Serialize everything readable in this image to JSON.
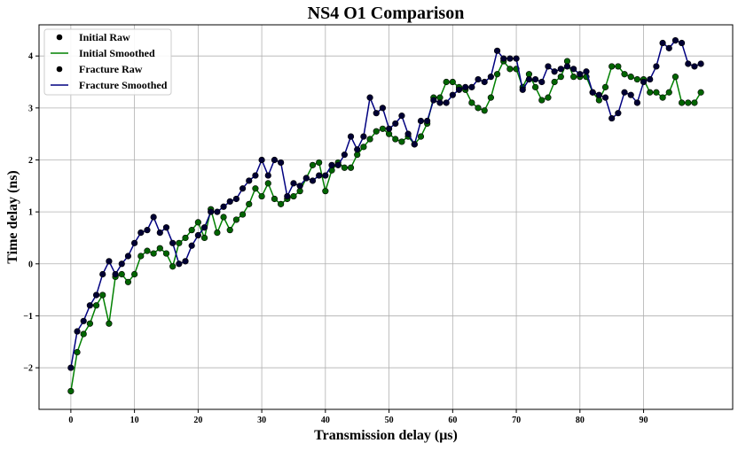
{
  "chart_data": {
    "type": "line",
    "title": "NS4 O1 Comparison",
    "xlabel": "Transmission delay (μs)",
    "ylabel": "Time delay (ns)",
    "xlim": [
      -5,
      104
    ],
    "ylim": [
      -2.8,
      4.6
    ],
    "xticks": [
      0,
      10,
      20,
      30,
      40,
      50,
      60,
      70,
      80,
      90
    ],
    "yticks": [
      -2,
      -1,
      0,
      1,
      2,
      3,
      4
    ],
    "xtick_labels": [
      "0",
      "10",
      "20",
      "30",
      "40",
      "50",
      "60",
      "70",
      "80",
      "90"
    ],
    "ytick_labels": [
      "−2",
      "−1",
      "0",
      "1",
      "2",
      "3",
      "4"
    ],
    "grid": true,
    "legend_position": "top-left",
    "legend": [
      {
        "label": "Initial Raw",
        "kind": "marker",
        "color": "#000000"
      },
      {
        "label": "Initial Smoothed",
        "kind": "line",
        "color": "#008000"
      },
      {
        "label": "Fracture Raw",
        "kind": "marker",
        "color": "#000000"
      },
      {
        "label": "Fracture Smoothed",
        "kind": "line",
        "color": "#000080"
      }
    ],
    "series": [
      {
        "name": "Initial Smoothed",
        "color": "#008000",
        "marker_fill": "#006400",
        "x": [
          0,
          1,
          2,
          3,
          4,
          5,
          6,
          7,
          8,
          9,
          10,
          11,
          12,
          13,
          14,
          15,
          16,
          17,
          18,
          19,
          20,
          21,
          22,
          23,
          24,
          25,
          26,
          27,
          28,
          29,
          30,
          31,
          32,
          33,
          34,
          35,
          36,
          37,
          38,
          39,
          40,
          41,
          42,
          43,
          44,
          45,
          46,
          47,
          48,
          49,
          50,
          51,
          52,
          53,
          54,
          55,
          56,
          57,
          58,
          59,
          60,
          61,
          62,
          63,
          64,
          65,
          66,
          67,
          68,
          69,
          70,
          71,
          72,
          73,
          74,
          75,
          76,
          77,
          78,
          79,
          80,
          81,
          82,
          83,
          84,
          85,
          86,
          87,
          88,
          89,
          90,
          91,
          92,
          93,
          94,
          95,
          96,
          97,
          98,
          99
        ],
        "y": [
          -2.45,
          -1.7,
          -1.35,
          -1.15,
          -0.8,
          -0.6,
          -1.15,
          -0.25,
          -0.2,
          -0.35,
          -0.2,
          0.15,
          0.25,
          0.2,
          0.3,
          0.2,
          -0.05,
          0.4,
          0.5,
          0.65,
          0.8,
          0.5,
          1.05,
          0.6,
          0.9,
          0.65,
          0.85,
          0.95,
          1.15,
          1.45,
          1.3,
          1.55,
          1.25,
          1.15,
          1.25,
          1.3,
          1.4,
          1.65,
          1.9,
          1.95,
          1.4,
          1.8,
          1.95,
          1.85,
          1.85,
          2.1,
          2.25,
          2.4,
          2.55,
          2.6,
          2.5,
          2.4,
          2.35,
          2.45,
          2.3,
          2.45,
          2.7,
          3.2,
          3.2,
          3.5,
          3.5,
          3.4,
          3.35,
          3.1,
          3.0,
          2.95,
          3.2,
          3.65,
          3.9,
          3.75,
          3.75,
          3.4,
          3.65,
          3.4,
          3.15,
          3.2,
          3.5,
          3.6,
          3.9,
          3.6,
          3.6,
          3.6,
          3.3,
          3.15,
          3.4,
          3.8,
          3.8,
          3.65,
          3.6,
          3.55,
          3.55,
          3.3,
          3.3,
          3.2,
          3.3,
          3.6,
          3.1,
          3.1,
          3.1,
          3.3
        ]
      },
      {
        "name": "Fracture Smoothed",
        "color": "#000080",
        "marker_fill": "#000033",
        "x": [
          0,
          1,
          2,
          3,
          4,
          5,
          6,
          7,
          8,
          9,
          10,
          11,
          12,
          13,
          14,
          15,
          16,
          17,
          18,
          19,
          20,
          21,
          22,
          23,
          24,
          25,
          26,
          27,
          28,
          29,
          30,
          31,
          32,
          33,
          34,
          35,
          36,
          37,
          38,
          39,
          40,
          41,
          42,
          43,
          44,
          45,
          46,
          47,
          48,
          49,
          50,
          51,
          52,
          53,
          54,
          55,
          56,
          57,
          58,
          59,
          60,
          61,
          62,
          63,
          64,
          65,
          66,
          67,
          68,
          69,
          70,
          71,
          72,
          73,
          74,
          75,
          76,
          77,
          78,
          79,
          80,
          81,
          82,
          83,
          84,
          85,
          86,
          87,
          88,
          89,
          90,
          91,
          92,
          93,
          94,
          95,
          96,
          97,
          98,
          99
        ],
        "y": [
          -2.0,
          -1.3,
          -1.1,
          -0.8,
          -0.6,
          -0.2,
          0.05,
          -0.2,
          0.0,
          0.15,
          0.4,
          0.6,
          0.65,
          0.9,
          0.6,
          0.7,
          0.4,
          0.0,
          0.05,
          0.35,
          0.55,
          0.7,
          1.0,
          1.0,
          1.1,
          1.2,
          1.25,
          1.45,
          1.6,
          1.7,
          2.0,
          1.7,
          2.0,
          1.95,
          1.3,
          1.55,
          1.5,
          1.65,
          1.6,
          1.7,
          1.7,
          1.9,
          1.9,
          2.1,
          2.45,
          2.2,
          2.45,
          3.2,
          2.9,
          3.0,
          2.6,
          2.7,
          2.85,
          2.5,
          2.3,
          2.75,
          2.75,
          3.15,
          3.1,
          3.1,
          3.25,
          3.35,
          3.4,
          3.4,
          3.55,
          3.5,
          3.6,
          4.1,
          3.95,
          3.95,
          3.95,
          3.35,
          3.55,
          3.55,
          3.5,
          3.8,
          3.7,
          3.75,
          3.8,
          3.75,
          3.65,
          3.7,
          3.3,
          3.25,
          3.2,
          2.8,
          2.9,
          3.3,
          3.25,
          3.1,
          3.5,
          3.55,
          3.8,
          4.25,
          4.15,
          4.3,
          4.25,
          3.85,
          3.8,
          3.85
        ]
      }
    ]
  }
}
